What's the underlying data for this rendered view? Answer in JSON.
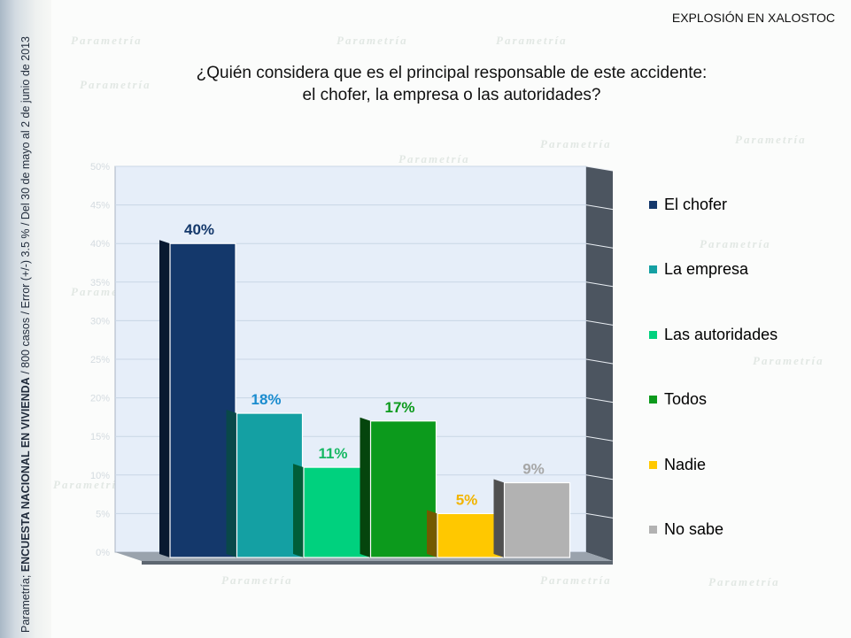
{
  "header": {
    "title": "EXPLOSIÓN EN XALOSTOC"
  },
  "question": {
    "line1": "¿Quién considera que es el principal responsable de este accidente:",
    "line2": "el chofer, la empresa o las autoridades?"
  },
  "side_note": {
    "source": "Parametría; ",
    "survey": "ENCUESTA NACIONAL EN VIVIENDA",
    "details": " / 800 casos / Error (+/-) 3.5 % / Del 30 de mayo al 2  de junio de 2013"
  },
  "watermark_text": "Parametría",
  "chart_data": {
    "type": "bar",
    "categories": [
      "El chofer",
      "La empresa",
      "Las autoridades",
      "Todos",
      "Nadie",
      "No sabe"
    ],
    "values": [
      40,
      18,
      11,
      17,
      5,
      9
    ],
    "value_labels": [
      "40%",
      "18%",
      "11%",
      "17%",
      "5%",
      "9%"
    ],
    "colors": [
      "#14386b",
      "#14a0a3",
      "#00d17e",
      "#0c9a1c",
      "#ffc800",
      "#b2b2b2"
    ],
    "label_colors": [
      "#14386b",
      "#1a8ccf",
      "#17b864",
      "#0c9a1c",
      "#f2b400",
      "#a6a6a6"
    ],
    "y_tick_labels": [
      "0%",
      "5%",
      "10%",
      "15%",
      "20%",
      "25%",
      "30%",
      "35%",
      "40%",
      "45%",
      "50%"
    ],
    "ylim": [
      0,
      50
    ],
    "grid": true,
    "legend_position": "right"
  }
}
